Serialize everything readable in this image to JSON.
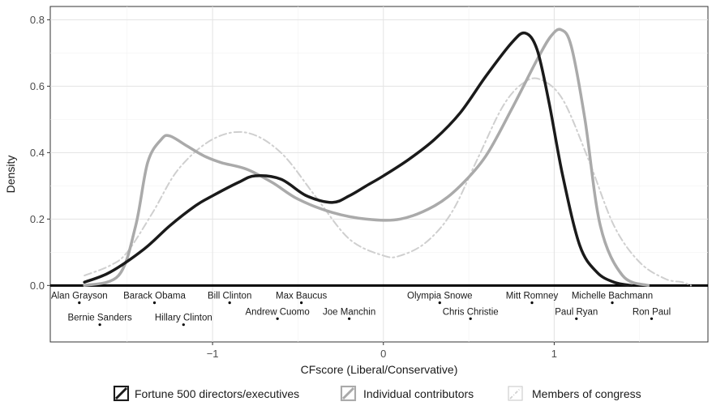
{
  "chart_data": {
    "type": "line",
    "xlabel": "CFscore (Liberal/Conservative)",
    "ylabel": "Density",
    "xlim": [
      -1.95,
      1.9
    ],
    "ylim": [
      -0.17,
      0.84
    ],
    "grid": true,
    "legend_position": "bottom",
    "x_ticks": [
      -1,
      0,
      1
    ],
    "x_tick_labels": [
      "−1",
      "0",
      "1"
    ],
    "y_ticks": [
      0.0,
      0.2,
      0.4,
      0.6,
      0.8
    ],
    "y_tick_labels": [
      "0.0",
      "0.2",
      "0.4",
      "0.6",
      "0.8"
    ],
    "series": [
      {
        "name": "Fortune 500 directors/executives",
        "color": "#1a1a1a",
        "dash": "solid",
        "x": [
          -1.75,
          -1.6,
          -1.4,
          -1.25,
          -1.1,
          -1.0,
          -0.85,
          -0.75,
          -0.6,
          -0.45,
          -0.3,
          -0.2,
          -0.1,
          0.0,
          0.15,
          0.3,
          0.45,
          0.6,
          0.75,
          0.83,
          0.9,
          0.97,
          1.05,
          1.15,
          1.25,
          1.35,
          1.45
        ],
        "y": [
          0.01,
          0.04,
          0.11,
          0.18,
          0.24,
          0.27,
          0.31,
          0.33,
          0.32,
          0.27,
          0.25,
          0.27,
          0.3,
          0.33,
          0.38,
          0.44,
          0.52,
          0.63,
          0.73,
          0.76,
          0.71,
          0.55,
          0.33,
          0.12,
          0.04,
          0.01,
          0.0
        ]
      },
      {
        "name": "Individual contributors",
        "color": "#aaaaaa",
        "dash": "solid",
        "x": [
          -1.75,
          -1.55,
          -1.45,
          -1.38,
          -1.3,
          -1.25,
          -1.15,
          -1.05,
          -0.95,
          -0.8,
          -0.65,
          -0.5,
          -0.3,
          -0.1,
          0.1,
          0.3,
          0.45,
          0.6,
          0.75,
          0.9,
          0.98,
          1.04,
          1.1,
          1.18,
          1.27,
          1.4,
          1.55
        ],
        "y": [
          0.0,
          0.03,
          0.18,
          0.37,
          0.44,
          0.45,
          0.42,
          0.39,
          0.37,
          0.35,
          0.31,
          0.26,
          0.22,
          0.2,
          0.2,
          0.24,
          0.3,
          0.39,
          0.53,
          0.68,
          0.75,
          0.77,
          0.72,
          0.5,
          0.18,
          0.03,
          0.0
        ]
      },
      {
        "name": "Members of congress",
        "color": "#cfcfcf",
        "dash": "dashdot",
        "x": [
          -1.75,
          -1.6,
          -1.5,
          -1.35,
          -1.2,
          -1.0,
          -0.8,
          -0.6,
          -0.4,
          -0.2,
          0.0,
          0.1,
          0.25,
          0.4,
          0.55,
          0.7,
          0.82,
          0.92,
          1.05,
          1.2,
          1.35,
          1.5,
          1.65,
          1.75,
          1.8
        ],
        "y": [
          0.03,
          0.06,
          0.1,
          0.22,
          0.35,
          0.44,
          0.46,
          0.4,
          0.27,
          0.14,
          0.09,
          0.09,
          0.13,
          0.22,
          0.38,
          0.54,
          0.61,
          0.62,
          0.56,
          0.38,
          0.18,
          0.07,
          0.02,
          0.01,
          0.0
        ]
      }
    ],
    "annotations": [
      {
        "label": "Alan Grayson",
        "x": -1.78,
        "y": -0.052,
        "row": 1
      },
      {
        "label": "Barack Obama",
        "x": -1.34,
        "y": -0.052,
        "row": 1
      },
      {
        "label": "Bill Clinton",
        "x": -0.9,
        "y": -0.052,
        "row": 1
      },
      {
        "label": "Max Baucus",
        "x": -0.48,
        "y": -0.052,
        "row": 1
      },
      {
        "label": "Olympia Snowe",
        "x": 0.33,
        "y": -0.052,
        "row": 1
      },
      {
        "label": "Mitt Romney",
        "x": 0.87,
        "y": -0.052,
        "row": 1
      },
      {
        "label": "Michelle Bachmann",
        "x": 1.34,
        "y": -0.052,
        "row": 1
      },
      {
        "label": "Bernie Sanders",
        "x": -1.66,
        "y": -0.118,
        "row": 2
      },
      {
        "label": "Hillary Clinton",
        "x": -1.17,
        "y": -0.118,
        "row": 2
      },
      {
        "label": "Andrew Cuomo",
        "x": -0.62,
        "y": -0.1,
        "row": 2
      },
      {
        "label": "Joe Manchin",
        "x": -0.2,
        "y": -0.1,
        "row": 2
      },
      {
        "label": "Chris Christie",
        "x": 0.51,
        "y": -0.1,
        "row": 2
      },
      {
        "label": "Paul Ryan",
        "x": 1.13,
        "y": -0.1,
        "row": 2
      },
      {
        "label": "Ron Paul",
        "x": 1.57,
        "y": -0.1,
        "row": 2
      }
    ]
  }
}
